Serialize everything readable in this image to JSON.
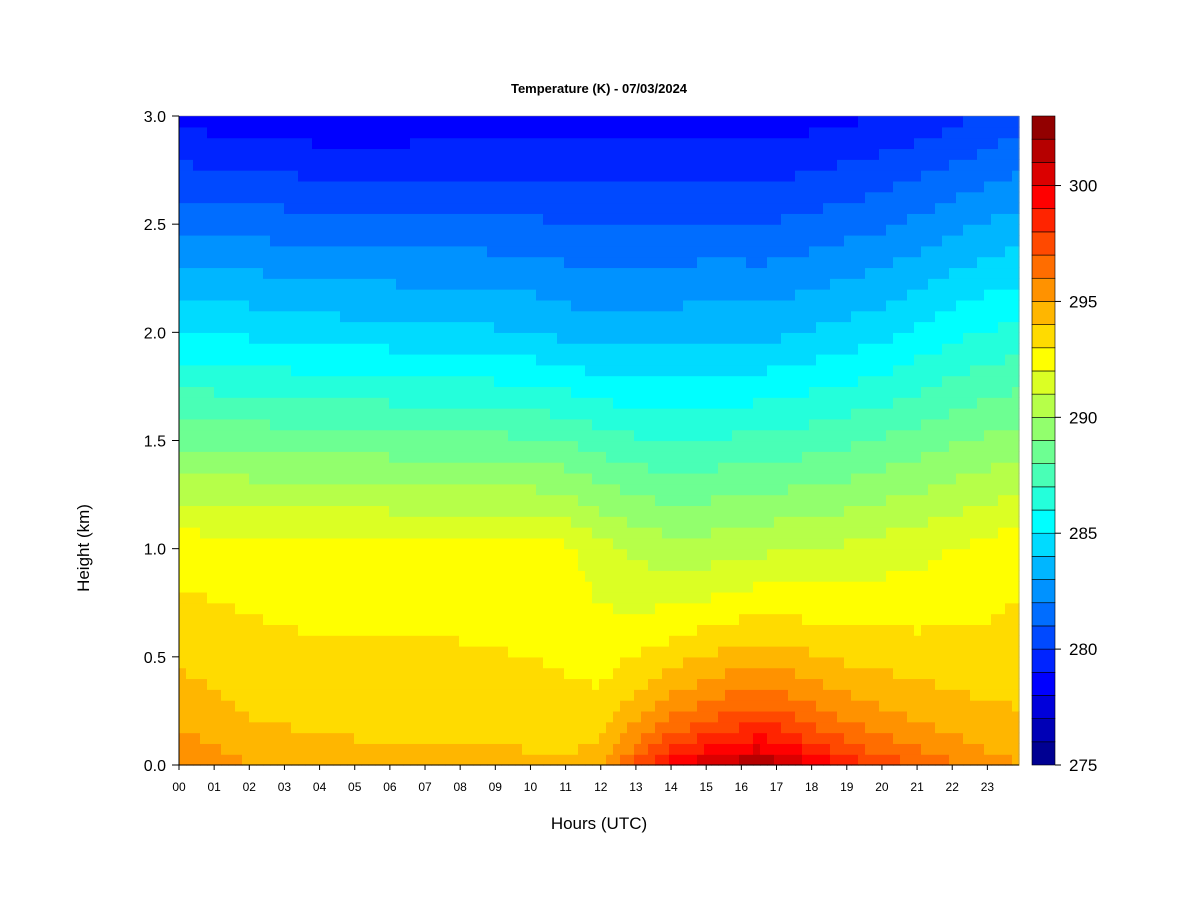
{
  "chart_data": {
    "type": "heatmap",
    "title": "Temperature (K) - 07/03/2024",
    "xlabel": "Hours (UTC)",
    "ylabel": "Height (km)",
    "x_ticks": [
      "00",
      "01",
      "02",
      "03",
      "04",
      "05",
      "06",
      "07",
      "08",
      "09",
      "10",
      "11",
      "12",
      "13",
      "14",
      "15",
      "16",
      "17",
      "18",
      "19",
      "20",
      "21",
      "22",
      "23"
    ],
    "x_range": [
      0,
      23.9
    ],
    "y_ticks": [
      "0.0",
      "0.5",
      "1.0",
      "1.5",
      "2.0",
      "2.5",
      "3.0"
    ],
    "y_range": [
      0,
      3.0
    ],
    "colorbar": {
      "range": [
        275,
        303
      ],
      "step": 1,
      "ticks": [
        "275",
        "280",
        "285",
        "290",
        "295",
        "300"
      ],
      "colormap": "jet"
    },
    "hours": [
      0,
      2,
      4,
      6,
      8,
      10,
      11,
      12,
      13,
      14,
      15,
      16,
      16.5,
      17,
      18,
      19,
      20,
      21,
      22,
      23,
      23.9
    ],
    "surface_temperature_K": [
      296.5,
      295.2,
      294.8,
      294.7,
      294.7,
      294.5,
      294.3,
      295.2,
      298.0,
      300.5,
      301.8,
      302.7,
      303.0,
      302.5,
      301.0,
      299.5,
      298.3,
      297.4,
      296.6,
      295.8,
      295.2
    ],
    "temperature_1km_K": [
      292.6,
      292.5,
      292.4,
      292.4,
      292.4,
      292.3,
      292.2,
      291.4,
      290.8,
      290.4,
      290.5,
      290.7,
      290.8,
      290.9,
      291.0,
      291.2,
      291.5,
      291.7,
      292.0,
      292.3,
      292.7
    ],
    "temperature_2km_K": [
      285.0,
      284.8,
      284.5,
      284.4,
      284.3,
      284.0,
      283.7,
      283.5,
      283.5,
      283.6,
      283.7,
      283.7,
      283.7,
      283.8,
      284.1,
      284.4,
      284.7,
      285.2,
      285.7,
      286.1,
      286.3
    ],
    "temperature_3km_K": [
      278.6,
      278.4,
      278.2,
      278.2,
      278.3,
      278.4,
      278.4,
      278.5,
      278.6,
      278.6,
      278.5,
      278.5,
      278.4,
      278.4,
      278.6,
      278.8,
      279.0,
      279.3,
      279.7,
      280.1,
      280.5
    ]
  }
}
